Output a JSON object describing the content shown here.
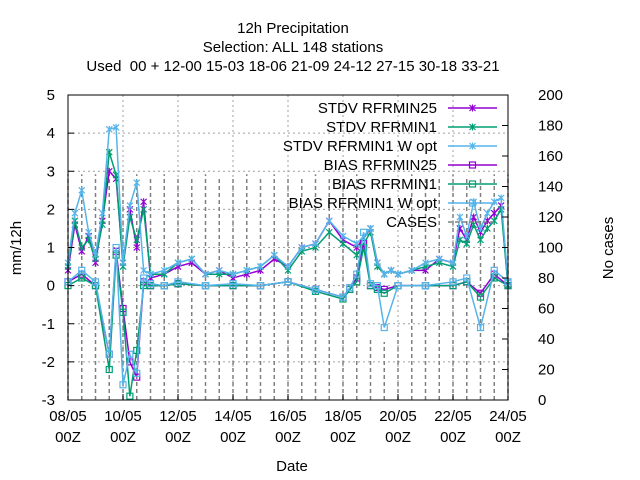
{
  "chart_data": {
    "type": "line",
    "title_lines": [
      "12h Precipitation",
      "Selection: ALL    148 stations",
      "Used  00 + 12-00 15-03 18-06 21-09 24-12 27-15 30-18 33-21"
    ],
    "xlabel": "Date",
    "ylabel": "mm/12h",
    "y2label": "No cases",
    "x_ticks": [
      {
        "line1": "08/05",
        "line2": "00Z"
      },
      {
        "line1": "10/05",
        "line2": "00Z"
      },
      {
        "line1": "12/05",
        "line2": "00Z"
      },
      {
        "line1": "14/05",
        "line2": "00Z"
      },
      {
        "line1": "16/05",
        "line2": "00Z"
      },
      {
        "line1": "18/05",
        "line2": "00Z"
      },
      {
        "line1": "20/05",
        "line2": "00Z"
      },
      {
        "line1": "22/05",
        "line2": "00Z"
      },
      {
        "line1": "24/05",
        "line2": "00Z"
      }
    ],
    "xlim_days": [
      0,
      16
    ],
    "ylim": [
      -3,
      5
    ],
    "y_ticks": [
      -3,
      -2,
      -1,
      0,
      1,
      2,
      3,
      4,
      5
    ],
    "y2lim": [
      0,
      200
    ],
    "y2_ticks": [
      0,
      20,
      40,
      60,
      80,
      100,
      120,
      140,
      160,
      180,
      200
    ],
    "grid": true,
    "legend_position": "top-right",
    "series": [
      {
        "name": "STDV RFRMIN25",
        "color": "#9400d3",
        "marker": "x",
        "x": [
          0.0,
          0.25,
          0.5,
          0.75,
          1.0,
          1.25,
          1.5,
          1.75,
          2.0,
          2.25,
          2.5,
          2.75,
          3.0,
          3.5,
          4.0,
          4.5,
          5.0,
          5.5,
          6.0,
          6.5,
          7.0,
          7.5,
          8.0,
          8.5,
          9.0,
          9.5,
          10.0,
          10.5,
          11.0,
          11.25,
          11.5,
          11.75,
          12.0,
          12.5,
          13.0,
          13.5,
          14.0,
          14.25,
          14.5,
          14.75,
          15.0,
          15.25,
          15.5,
          15.75,
          16.0
        ],
        "y": [
          0.4,
          1.6,
          0.9,
          1.3,
          0.6,
          1.7,
          3.0,
          2.8,
          0.6,
          2.0,
          1.0,
          2.2,
          0.2,
          0.3,
          0.5,
          0.6,
          0.3,
          0.4,
          0.2,
          0.3,
          0.4,
          0.7,
          0.5,
          1.0,
          1.1,
          1.7,
          1.2,
          1.0,
          1.5,
          0.6,
          0.3,
          0.4,
          0.3,
          0.4,
          0.4,
          0.7,
          0.6,
          1.5,
          1.2,
          1.8,
          1.4,
          1.7,
          1.9,
          2.1,
          0.0
        ]
      },
      {
        "name": "STDV RFRMIN1",
        "color": "#009e73",
        "marker": "x",
        "x": [
          0.0,
          0.25,
          0.5,
          0.75,
          1.0,
          1.25,
          1.5,
          1.75,
          2.0,
          2.25,
          2.5,
          2.75,
          3.0,
          3.5,
          4.0,
          4.5,
          5.0,
          5.5,
          6.0,
          6.5,
          7.0,
          7.5,
          8.0,
          8.5,
          9.0,
          9.5,
          10.0,
          10.5,
          11.0,
          11.25,
          11.5,
          11.75,
          12.0,
          12.5,
          13.0,
          13.5,
          14.0,
          14.25,
          14.5,
          14.75,
          15.0,
          15.25,
          15.5,
          15.75,
          16.0
        ],
        "y": [
          0.5,
          1.7,
          1.0,
          1.2,
          0.7,
          1.6,
          3.5,
          2.9,
          0.5,
          1.8,
          1.2,
          2.0,
          0.3,
          0.3,
          0.6,
          0.7,
          0.3,
          0.3,
          0.3,
          0.4,
          0.5,
          0.8,
          0.4,
          0.9,
          1.0,
          1.4,
          1.1,
          0.8,
          1.4,
          0.5,
          0.3,
          0.4,
          0.3,
          0.4,
          0.5,
          0.6,
          0.5,
          1.2,
          1.1,
          1.6,
          1.2,
          1.5,
          1.7,
          2.0,
          0.0
        ]
      },
      {
        "name": "STDV RFRMIN1 W opt",
        "color": "#56b4e9",
        "marker": "x",
        "x": [
          0.0,
          0.25,
          0.5,
          0.75,
          1.0,
          1.25,
          1.5,
          1.75,
          2.0,
          2.25,
          2.5,
          2.75,
          3.0,
          3.5,
          4.0,
          4.5,
          5.0,
          5.5,
          6.0,
          6.5,
          7.0,
          7.5,
          8.0,
          8.5,
          9.0,
          9.5,
          10.0,
          10.5,
          11.0,
          11.25,
          11.5,
          11.75,
          12.0,
          12.5,
          13.0,
          13.5,
          14.0,
          14.25,
          14.5,
          14.75,
          15.0,
          15.25,
          15.5,
          15.75,
          16.0
        ],
        "y": [
          0.6,
          1.9,
          2.5,
          1.4,
          0.8,
          1.9,
          4.1,
          4.15,
          0.6,
          2.1,
          2.7,
          0.4,
          0.3,
          0.4,
          0.6,
          0.7,
          0.3,
          0.4,
          0.3,
          0.4,
          0.5,
          0.8,
          0.5,
          1.0,
          1.1,
          1.7,
          1.3,
          1.1,
          1.5,
          0.6,
          0.3,
          0.4,
          0.3,
          0.4,
          0.6,
          0.7,
          0.6,
          1.8,
          1.3,
          2.2,
          1.5,
          1.9,
          2.2,
          2.3,
          0.1
        ]
      },
      {
        "name": "BIAS RFRMIN25",
        "color": "#9400d3",
        "marker": "square",
        "x": [
          0.0,
          0.5,
          1.0,
          1.5,
          1.75,
          2.0,
          2.25,
          2.5,
          2.75,
          3.0,
          3.5,
          4.0,
          5.0,
          6.0,
          7.0,
          8.0,
          9.0,
          10.0,
          10.25,
          10.5,
          10.75,
          11.0,
          11.25,
          11.5,
          12.0,
          13.0,
          14.0,
          14.5,
          15.0,
          15.5,
          16.0
        ],
        "y": [
          0.1,
          0.3,
          0.0,
          -1.8,
          0.9,
          -0.6,
          -2.0,
          -2.4,
          0.1,
          0.0,
          0.0,
          0.05,
          0.0,
          0.0,
          0.0,
          0.1,
          -0.1,
          -0.3,
          -0.1,
          0.2,
          1.1,
          0.0,
          -0.05,
          -0.1,
          0.0,
          0.0,
          0.0,
          0.1,
          -0.2,
          0.3,
          0.0
        ]
      },
      {
        "name": "BIAS RFRMIN1",
        "color": "#009e73",
        "marker": "square",
        "x": [
          0.0,
          0.5,
          1.0,
          1.5,
          1.75,
          2.0,
          2.25,
          2.5,
          2.75,
          3.0,
          3.5,
          4.0,
          5.0,
          6.0,
          7.0,
          8.0,
          9.0,
          10.0,
          10.25,
          10.5,
          10.75,
          11.0,
          11.25,
          11.5,
          12.0,
          13.0,
          14.0,
          14.5,
          15.0,
          15.5,
          16.0
        ],
        "y": [
          0.0,
          0.2,
          0.0,
          -2.2,
          0.8,
          -0.7,
          -2.9,
          -1.7,
          0.0,
          0.0,
          0.0,
          0.05,
          0.0,
          0.0,
          0.0,
          0.1,
          -0.15,
          -0.35,
          -0.1,
          0.1,
          1.0,
          0.0,
          -0.1,
          -0.2,
          0.0,
          0.0,
          0.0,
          0.1,
          -0.3,
          0.2,
          0.0
        ]
      },
      {
        "name": "BIAS RFRMIN1 W opt",
        "color": "#56b4e9",
        "marker": "square",
        "x": [
          0.0,
          0.5,
          1.0,
          1.5,
          1.75,
          2.0,
          2.25,
          2.5,
          2.75,
          3.0,
          3.5,
          4.0,
          5.0,
          6.0,
          7.0,
          8.0,
          9.0,
          10.0,
          10.25,
          10.5,
          10.75,
          11.0,
          11.25,
          11.5,
          12.0,
          13.0,
          14.0,
          14.5,
          15.0,
          15.5,
          16.0
        ],
        "y": [
          0.1,
          0.4,
          0.1,
          -1.8,
          1.0,
          -2.6,
          -1.8,
          -2.3,
          0.2,
          0.05,
          0.0,
          0.1,
          0.0,
          0.05,
          0.0,
          0.1,
          -0.1,
          -0.3,
          -0.05,
          0.3,
          1.4,
          0.05,
          0.0,
          -1.1,
          0.0,
          0.0,
          0.1,
          0.2,
          -1.1,
          0.4,
          0.1
        ]
      },
      {
        "name": "CASES",
        "color": "#808080",
        "axis": "y2",
        "style": "dashed-impulses",
        "x": [
          0.0,
          0.5,
          1.0,
          1.5,
          2.0,
          2.5,
          3.0,
          3.5,
          4.0,
          4.5,
          5.0,
          5.5,
          6.0,
          6.5,
          7.0,
          7.5,
          8.0,
          8.5,
          9.0,
          9.5,
          10.0,
          10.5,
          11.0,
          11.5,
          12.0,
          12.5,
          13.0,
          13.5,
          14.0,
          14.5,
          15.0,
          15.5,
          16.0
        ],
        "y": [
          148,
          148,
          148,
          148,
          145,
          148,
          146,
          148,
          146,
          147,
          148,
          146,
          147,
          148,
          146,
          148,
          147,
          146,
          148,
          147,
          146,
          148,
          40,
          38,
          45,
          148,
          146,
          147,
          148,
          147,
          146,
          148,
          148
        ]
      }
    ]
  }
}
